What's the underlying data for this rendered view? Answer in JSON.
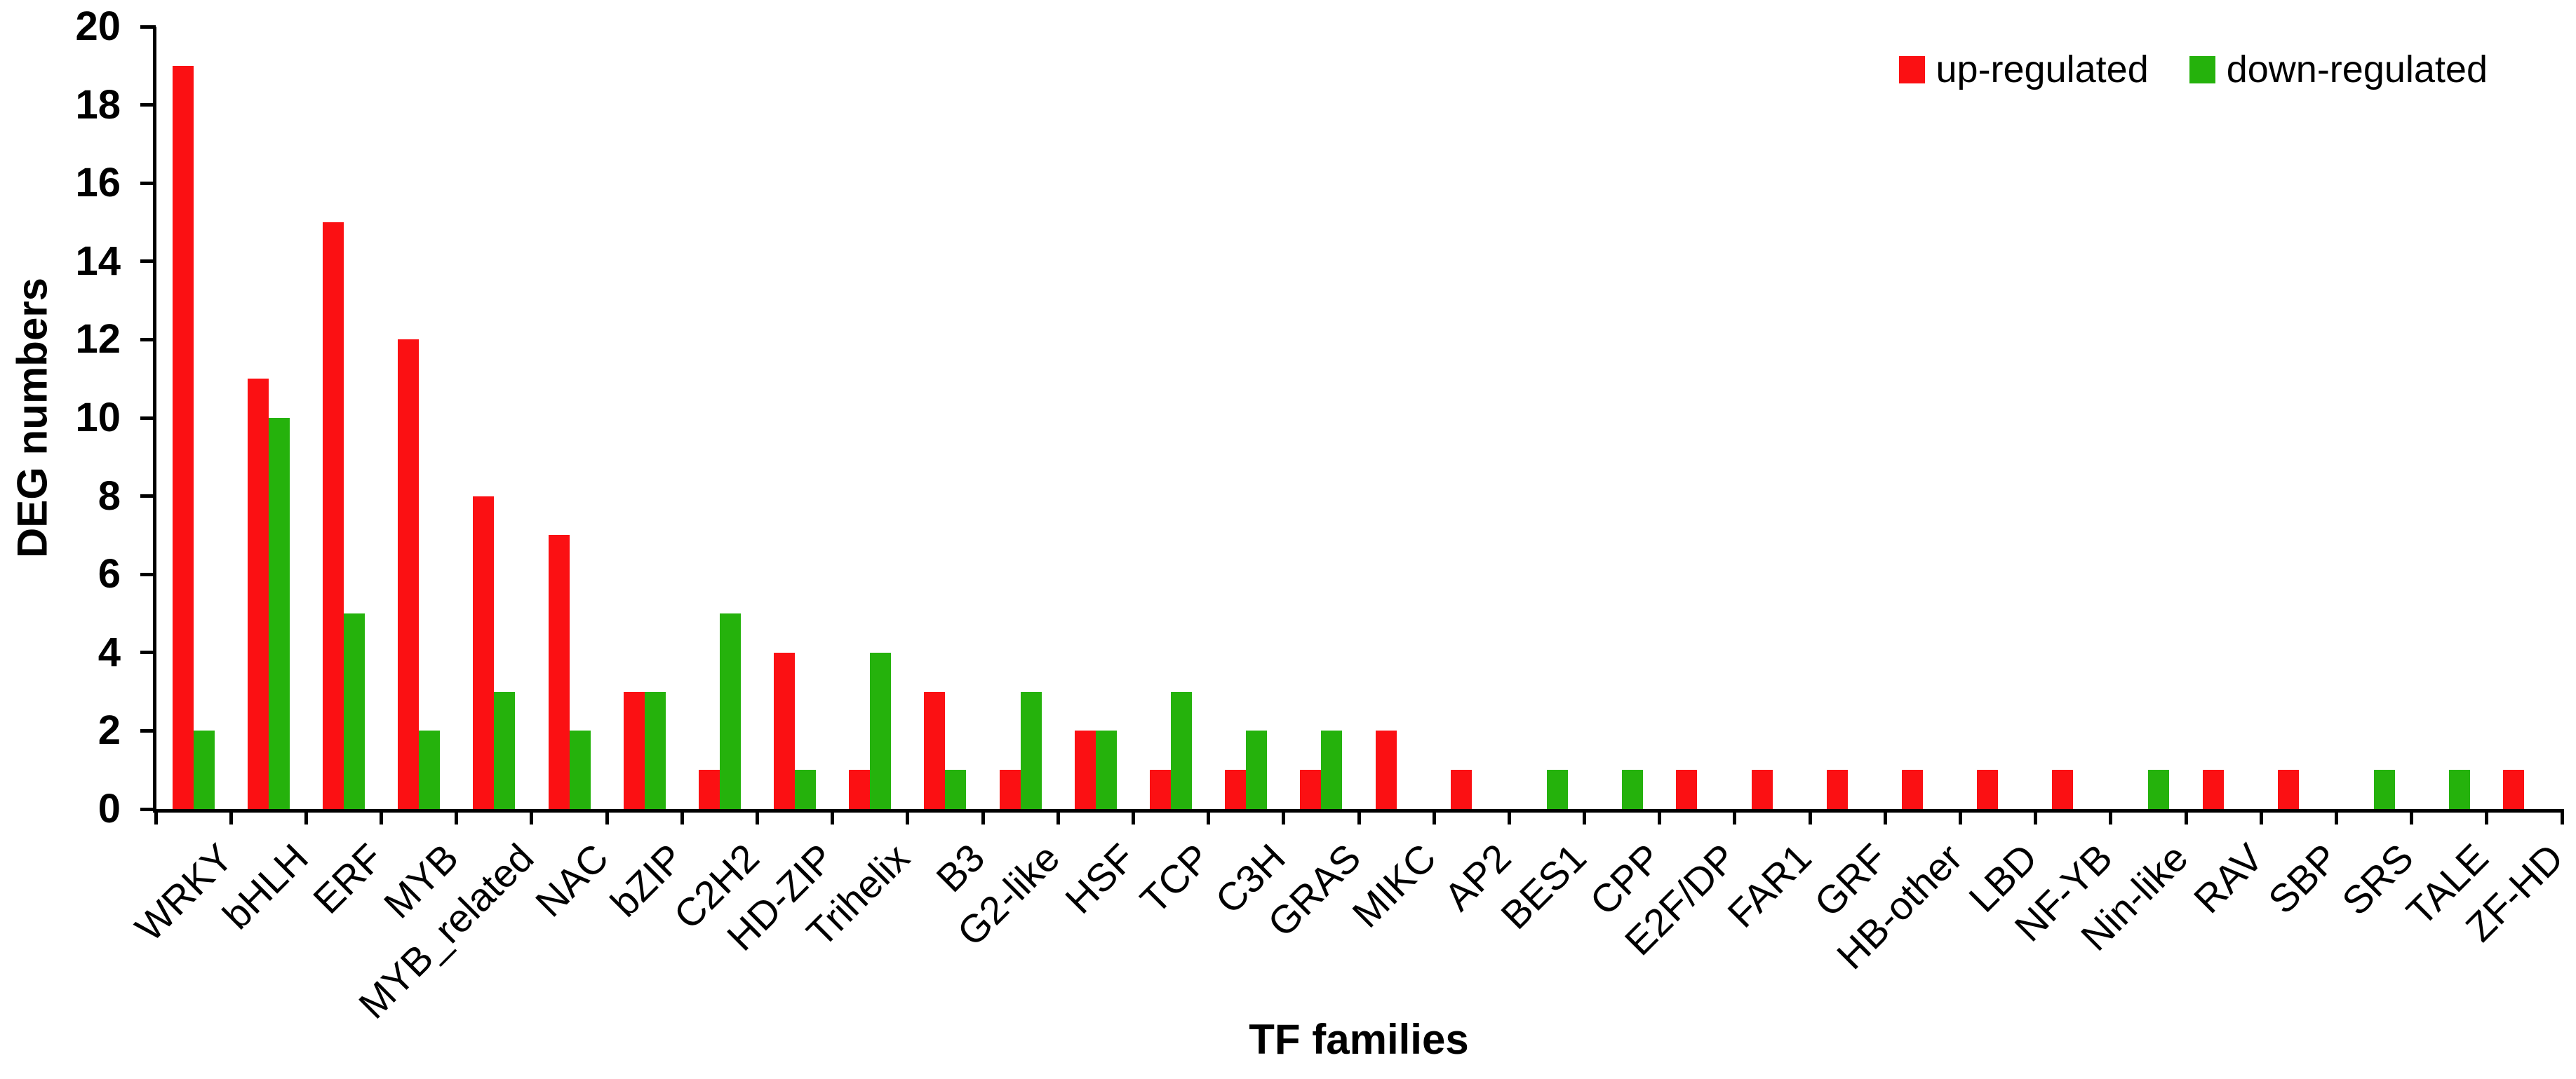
{
  "chart_data": {
    "type": "bar",
    "title": "",
    "xlabel": "TF families",
    "ylabel": "DEG numbers",
    "ylim": [
      0,
      20
    ],
    "yticks": [
      0,
      2,
      4,
      6,
      8,
      10,
      12,
      14,
      16,
      18,
      20
    ],
    "grid": false,
    "legend_position": "top-right",
    "axis_color": "#000000",
    "background_color": "#FFFFFF",
    "categories": [
      "WRKY",
      "bHLH",
      "ERF",
      "MYB",
      "MYB_related",
      "NAC",
      "bZIP",
      "C2H2",
      "HD-ZIP",
      "Trihelix",
      "B3",
      "G2-like",
      "HSF",
      "TCP",
      "C3H",
      "GRAS",
      "MIKC",
      "AP2",
      "BES1",
      "CPP",
      "E2F/DP",
      "FAR1",
      "GRF",
      "HB-other",
      "LBD",
      "NF-YB",
      "Nin-like",
      "RAV",
      "SBP",
      "SRS",
      "TALE",
      "ZF-HD"
    ],
    "series": [
      {
        "name": "up-regulated",
        "color": "#FB1013",
        "values": [
          19,
          11,
          15,
          12,
          8,
          7,
          3,
          1,
          4,
          1,
          3,
          1,
          2,
          1,
          1,
          1,
          2,
          1,
          0,
          0,
          1,
          1,
          1,
          1,
          1,
          1,
          0,
          1,
          1,
          0,
          0,
          1
        ]
      },
      {
        "name": "down-regulated",
        "color": "#25B20C",
        "values": [
          2,
          10,
          5,
          2,
          3,
          2,
          3,
          5,
          1,
          4,
          1,
          3,
          2,
          3,
          2,
          2,
          0,
          0,
          1,
          1,
          0,
          0,
          0,
          0,
          0,
          0,
          1,
          0,
          0,
          1,
          1,
          0
        ]
      }
    ]
  }
}
